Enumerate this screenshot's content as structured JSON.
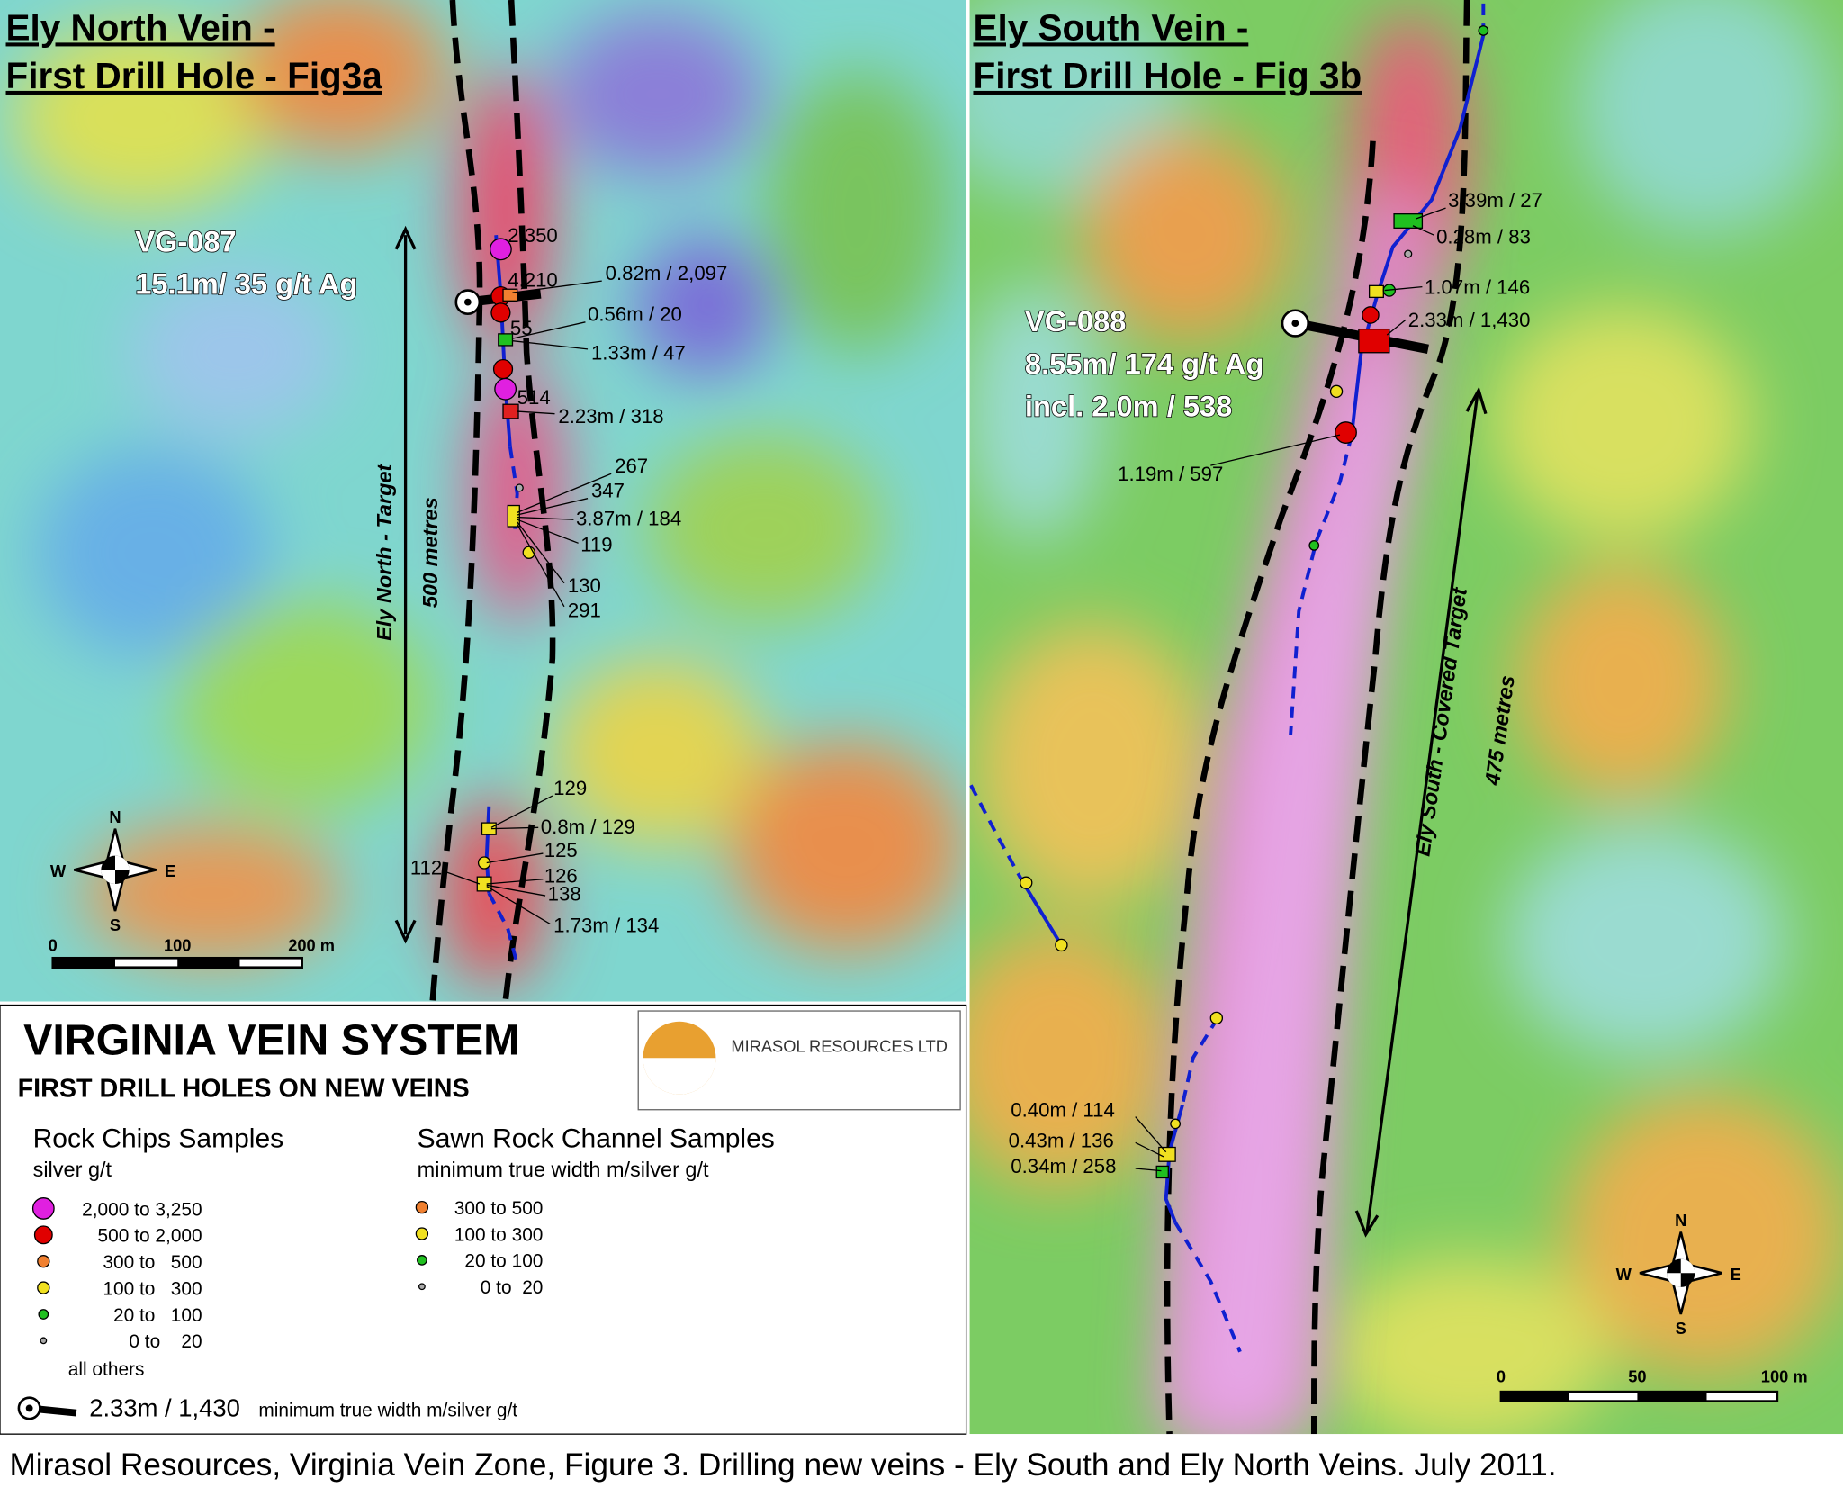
{
  "left_panel": {
    "title": [
      "Ely North Vein -",
      "First Drill Hole - Fig3a"
    ],
    "hole": [
      "VG-087",
      "15.1m/ 35 g/t Ag"
    ],
    "target": "Ely North - Target",
    "length": "500 metres",
    "labels": [
      "2,350",
      "4,210",
      "0.82m / 2,097",
      "55",
      "0.56m / 20",
      "1.33m / 47",
      "514",
      "2.23m / 318",
      "267",
      "347",
      "3.87m / 184",
      "119",
      "130",
      "291",
      "129",
      "0.8m / 129",
      "125",
      "112",
      "126",
      "138",
      "1.73m / 134"
    ],
    "scale": [
      "0",
      "100",
      "200 m"
    ],
    "compass": [
      "N",
      "S",
      "W",
      "E"
    ]
  },
  "right_panel": {
    "title": [
      "Ely South Vein -",
      "First Drill Hole - Fig 3b"
    ],
    "hole": [
      "VG-088",
      "8.55m/ 174 g/t Ag",
      "incl. 2.0m / 538"
    ],
    "target": "Ely South - Covered Target",
    "length": "475 metres",
    "labels": [
      "3.39m / 27",
      "0.28m / 83",
      "1.07m / 146",
      "2.33m / 1,430",
      "1.19m / 597",
      "0.40m / 114",
      "0.43m / 136",
      "0.34m / 258"
    ],
    "scale": [
      "0",
      "50",
      "100 m"
    ],
    "compass": [
      "N",
      "S",
      "W",
      "E"
    ]
  },
  "legend": {
    "title": "VIRGINIA VEIN SYSTEM",
    "subtitle": "FIRST DRILL HOLES ON NEW VEINS",
    "logo": "MIRASOL RESOURCES LTD",
    "rock_chips": {
      "heading": "Rock Chips Samples",
      "unit": "silver g/t",
      "items": [
        {
          "label": "2,000 to 3,250",
          "color": "#e020e0"
        },
        {
          "label": "500 to 2,000",
          "color": "#e00000"
        },
        {
          "label": "300 to   500",
          "color": "#f08030"
        },
        {
          "label": "100 to   300",
          "color": "#f0e020"
        },
        {
          "label": "20 to   100",
          "color": "#20c020"
        },
        {
          "label": "0 to    20",
          "color": "#aaaaaa"
        }
      ],
      "note": "all others"
    },
    "channel": {
      "heading": "Sawn Rock Channel Samples",
      "unit": "minimum true width m/silver g/t",
      "items": [
        {
          "label": "300 to 500",
          "color": "#f08030"
        },
        {
          "label": "100 to 300",
          "color": "#f0e020"
        },
        {
          "label": "20 to 100",
          "color": "#20c020"
        },
        {
          "label": "0 to  20",
          "color": "#aaaaaa"
        }
      ]
    },
    "drill_example": {
      "value": "2.33m / 1,430",
      "unit": "minimum true width m/silver g/t"
    }
  },
  "caption": "Mirasol Resources, Virginia Vein Zone, Figure 3. Drilling new veins - Ely South and Ely North Veins. July 2011."
}
